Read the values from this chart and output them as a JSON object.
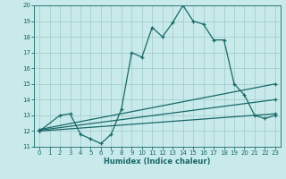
{
  "xlabel": "Humidex (Indice chaleur)",
  "background_color": "#c8eaea",
  "grid_color": "#a0c8c8",
  "line_color": "#1a6868",
  "xlim": [
    -0.5,
    23.5
  ],
  "ylim": [
    11,
    20
  ],
  "xticks": [
    0,
    1,
    2,
    3,
    4,
    5,
    6,
    7,
    8,
    9,
    10,
    11,
    12,
    13,
    14,
    15,
    16,
    17,
    18,
    19,
    20,
    21,
    22,
    23
  ],
  "yticks": [
    11,
    12,
    13,
    14,
    15,
    16,
    17,
    18,
    19,
    20
  ],
  "series1_x": [
    0,
    2,
    3,
    4,
    5,
    6,
    7,
    8,
    9,
    10,
    11,
    12,
    13,
    14,
    15,
    16,
    17,
    18,
    19,
    20,
    21,
    22,
    23
  ],
  "series1_y": [
    12,
    13,
    13.1,
    11.8,
    11.5,
    11.2,
    11.8,
    13.4,
    17.0,
    16.7,
    18.6,
    18.0,
    18.9,
    20.0,
    19.0,
    18.8,
    17.8,
    17.8,
    15.0,
    14.3,
    13.0,
    12.8,
    13.0
  ],
  "series2_x": [
    0,
    23
  ],
  "series2_y": [
    12.1,
    15.0
  ],
  "series3_x": [
    0,
    23
  ],
  "series3_y": [
    12.05,
    14.0
  ],
  "series4_x": [
    0,
    23
  ],
  "series4_y": [
    12.0,
    13.1
  ]
}
